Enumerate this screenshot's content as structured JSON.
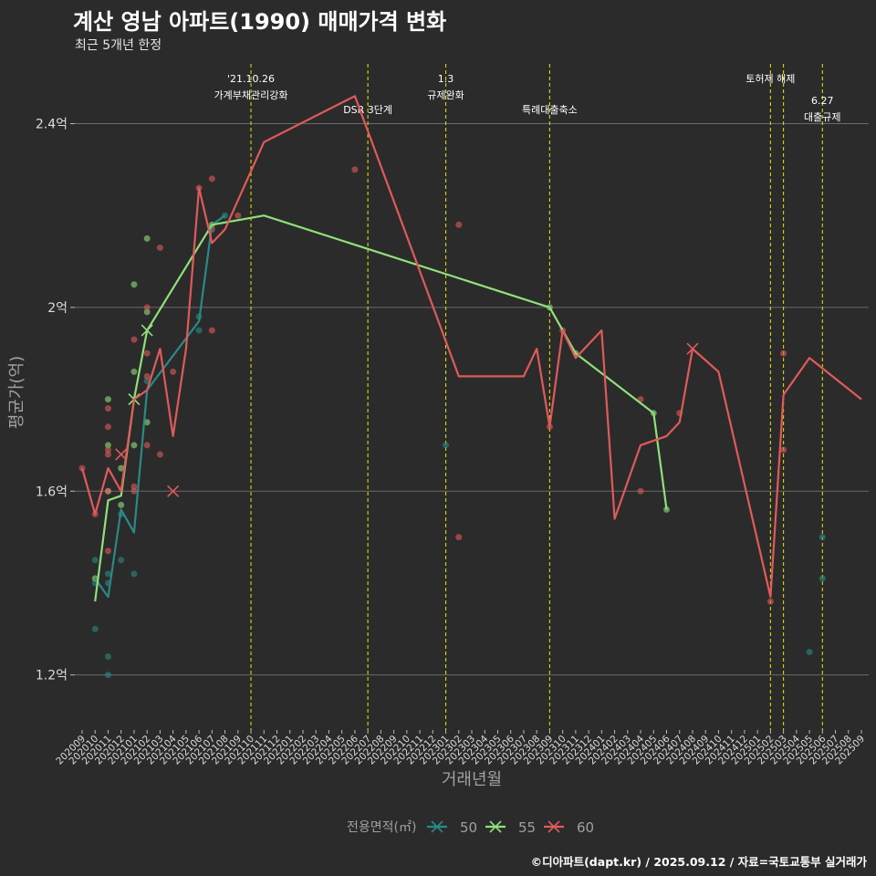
{
  "header": {
    "title": "계산 영남 아파트(1990) 매매가격 변화",
    "subtitle": "최근 5개년 한정"
  },
  "caption": "©디아파트(dapt.kr) / 2025.09.12 / 자료=국토교통부 실거래가",
  "colors": {
    "background": "#2b2b2b",
    "grid": "#6b6b6b",
    "vline": "#d8d800",
    "axis_text": "#dddddd",
    "axis_title": "#a0a0a0",
    "s50": "#2a8a86",
    "s55": "#8fe07a",
    "s60": "#e05a5a"
  },
  "chart_data": {
    "type": "line",
    "title": "계산 영남 아파트(1990) 매매가격 변화",
    "xlabel": "거래년월",
    "ylabel": "평균가(억)",
    "ylim": [
      1.1,
      2.55
    ],
    "yticks": [
      1.2,
      1.6,
      2.0,
      2.4
    ],
    "ytick_labels": [
      "1.2억",
      "1.6억",
      "2억",
      "2.4억"
    ],
    "grid": true,
    "legend_title": "전용면적(㎡)",
    "legend_position": "bottom",
    "categories": [
      "202009",
      "202010",
      "202011",
      "202012",
      "202101",
      "202102",
      "202103",
      "202104",
      "202105",
      "202106",
      "202107",
      "202108",
      "202109",
      "202110",
      "202111",
      "202112",
      "202201",
      "202202",
      "202203",
      "202204",
      "202205",
      "202206",
      "202207",
      "202208",
      "202209",
      "202210",
      "202211",
      "202212",
      "202301",
      "202302",
      "202303",
      "202304",
      "202305",
      "202306",
      "202307",
      "202308",
      "202309",
      "202310",
      "202311",
      "202312",
      "202401",
      "202402",
      "202403",
      "202404",
      "202405",
      "202406",
      "202407",
      "202408",
      "202409",
      "202410",
      "202411",
      "202412",
      "202501",
      "202502",
      "202503",
      "202504",
      "202505",
      "202506",
      "202507",
      "202508",
      "202509"
    ],
    "series": [
      {
        "name": "50",
        "color_key": "s50",
        "line": [
          [
            "202010",
            1.41
          ],
          [
            "202011",
            1.37
          ],
          [
            "202012",
            1.56
          ],
          [
            "202101",
            1.51
          ],
          [
            "202102",
            1.82
          ],
          [
            "202106",
            1.97
          ],
          [
            "202107",
            2.18
          ],
          [
            "202108",
            2.2
          ]
        ],
        "points": [
          [
            "202010",
            1.4
          ],
          [
            "202010",
            1.45
          ],
          [
            "202010",
            1.3
          ],
          [
            "202011",
            1.42
          ],
          [
            "202011",
            1.4
          ],
          [
            "202011",
            1.24
          ],
          [
            "202011",
            1.2
          ],
          [
            "202012",
            1.45
          ],
          [
            "202012",
            1.55
          ],
          [
            "202101",
            1.42
          ],
          [
            "202102",
            1.84
          ],
          [
            "202106",
            1.95
          ],
          [
            "202106",
            1.98
          ],
          [
            "202108",
            2.2
          ],
          [
            "202301",
            1.7
          ],
          [
            "202505",
            1.25
          ],
          [
            "202506",
            1.5
          ],
          [
            "202506",
            1.41
          ]
        ],
        "markers": []
      },
      {
        "name": "55",
        "color_key": "s55",
        "line": [
          [
            "202010",
            1.36
          ],
          [
            "202011",
            1.58
          ],
          [
            "202012",
            1.59
          ],
          [
            "202101",
            1.8
          ],
          [
            "202102",
            1.95
          ],
          [
            "202107",
            2.18
          ],
          [
            "202111",
            2.2
          ],
          [
            "202309",
            2.0
          ],
          [
            "202311",
            1.9
          ],
          [
            "202405",
            1.77
          ],
          [
            "202406",
            1.56
          ]
        ],
        "points": [
          [
            "202010",
            1.41
          ],
          [
            "202011",
            1.8
          ],
          [
            "202011",
            1.7
          ],
          [
            "202011",
            1.6
          ],
          [
            "202012",
            1.65
          ],
          [
            "202012",
            1.57
          ],
          [
            "202101",
            2.05
          ],
          [
            "202101",
            1.7
          ],
          [
            "202101",
            1.86
          ],
          [
            "202102",
            2.15
          ],
          [
            "202102",
            1.99
          ],
          [
            "202102",
            1.75
          ],
          [
            "202107",
            2.18
          ],
          [
            "202309",
            2.0
          ],
          [
            "202311",
            1.9
          ],
          [
            "202405",
            1.77
          ],
          [
            "202406",
            1.56
          ]
        ],
        "markers": [
          [
            "202101",
            1.8
          ],
          [
            "202102",
            1.95
          ]
        ]
      },
      {
        "name": "60",
        "color_key": "s60",
        "line": [
          [
            "202009",
            1.65
          ],
          [
            "202010",
            1.55
          ],
          [
            "202011",
            1.65
          ],
          [
            "202012",
            1.6
          ],
          [
            "202101",
            1.8
          ],
          [
            "202102",
            1.82
          ],
          [
            "202103",
            1.91
          ],
          [
            "202104",
            1.72
          ],
          [
            "202105",
            1.91
          ],
          [
            "202106",
            2.26
          ],
          [
            "202107",
            2.14
          ],
          [
            "202108",
            2.17
          ],
          [
            "202111",
            2.36
          ],
          [
            "202206",
            2.46
          ],
          [
            "202302",
            1.85
          ],
          [
            "202307",
            1.85
          ],
          [
            "202308",
            1.91
          ],
          [
            "202309",
            1.74
          ],
          [
            "202310",
            1.95
          ],
          [
            "202311",
            1.89
          ],
          [
            "202401",
            1.95
          ],
          [
            "202402",
            1.54
          ],
          [
            "202404",
            1.7
          ],
          [
            "202406",
            1.72
          ],
          [
            "202407",
            1.75
          ],
          [
            "202408",
            1.91
          ],
          [
            "202410",
            1.86
          ],
          [
            "202502",
            1.37
          ],
          [
            "202503",
            1.81
          ],
          [
            "202505",
            1.89
          ],
          [
            "202509",
            1.8
          ]
        ],
        "points": [
          [
            "202009",
            1.65
          ],
          [
            "202010",
            1.55
          ],
          [
            "202011",
            1.68
          ],
          [
            "202011",
            1.78
          ],
          [
            "202011",
            1.74
          ],
          [
            "202011",
            1.69
          ],
          [
            "202011",
            1.47
          ],
          [
            "202011",
            1.6
          ],
          [
            "202101",
            1.93
          ],
          [
            "202101",
            1.61
          ],
          [
            "202101",
            1.6
          ],
          [
            "202102",
            2.0
          ],
          [
            "202102",
            1.9
          ],
          [
            "202102",
            1.85
          ],
          [
            "202102",
            1.7
          ],
          [
            "202103",
            2.13
          ],
          [
            "202103",
            1.68
          ],
          [
            "202104",
            1.86
          ],
          [
            "202106",
            2.26
          ],
          [
            "202107",
            2.28
          ],
          [
            "202107",
            2.17
          ],
          [
            "202107",
            1.95
          ],
          [
            "202109",
            2.2
          ],
          [
            "202206",
            2.3
          ],
          [
            "202302",
            2.18
          ],
          [
            "202302",
            1.5
          ],
          [
            "202309",
            1.74
          ],
          [
            "202310",
            1.95
          ],
          [
            "202404",
            1.6
          ],
          [
            "202404",
            1.8
          ],
          [
            "202407",
            1.77
          ],
          [
            "202503",
            1.9
          ],
          [
            "202503",
            1.69
          ],
          [
            "202502",
            1.36
          ]
        ],
        "markers": [
          [
            "202012",
            1.68
          ],
          [
            "202104",
            1.6
          ],
          [
            "202408",
            1.91
          ]
        ]
      }
    ],
    "events": [
      {
        "month": "202110",
        "label_lines": [
          "'21.10.26",
          "가계부채관리강화"
        ],
        "row": 0
      },
      {
        "month": "202207",
        "label_lines": [
          "DSR 3단계"
        ],
        "row": 1
      },
      {
        "month": "202301",
        "label_lines": [
          "1.3",
          "규제완화"
        ],
        "row": 0
      },
      {
        "month": "202309",
        "label_lines": [
          "특례대출축소"
        ],
        "row": 1
      },
      {
        "month": "202502",
        "label_lines": [
          "토허제 해제"
        ],
        "row": 0
      },
      {
        "month": "202503",
        "label_lines": [],
        "row": 0
      },
      {
        "month": "202506",
        "label_lines": [
          "6.27",
          "대출규제"
        ],
        "row": 2
      }
    ]
  }
}
